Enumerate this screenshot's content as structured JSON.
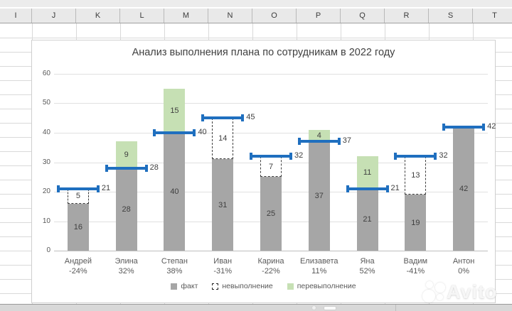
{
  "spreadsheet": {
    "column_headers": [
      "I",
      "J",
      "K",
      "L",
      "M",
      "N",
      "O",
      "P",
      "Q",
      "R",
      "S",
      "T"
    ]
  },
  "chart_data": {
    "type": "bar",
    "title": "Анализ выполнения плана по сотрудникам в 2022 году",
    "categories": [
      "Андрей",
      "Элина",
      "Степан",
      "Иван",
      "Карина",
      "Елизавета",
      "Яна",
      "Вадим",
      "Антон"
    ],
    "category_percents": [
      "-24%",
      "32%",
      "38%",
      "-31%",
      "-22%",
      "11%",
      "52%",
      "-41%",
      "0%"
    ],
    "series": [
      {
        "name": "факт",
        "values": [
          16,
          28,
          40,
          31,
          25,
          37,
          21,
          19,
          42
        ]
      },
      {
        "name": "невыполнение",
        "values": [
          5,
          0,
          0,
          14,
          7,
          0,
          0,
          13,
          0
        ]
      },
      {
        "name": "перевыполнение",
        "values": [
          0,
          9,
          15,
          0,
          0,
          4,
          11,
          0,
          0
        ]
      }
    ],
    "plan_values": [
      21,
      28,
      40,
      45,
      32,
      37,
      21,
      32,
      42
    ],
    "y_ticks": [
      0,
      10,
      20,
      30,
      40,
      50,
      60
    ],
    "ylim": [
      0,
      60
    ],
    "grid": true,
    "legend_position": "bottom",
    "legend": [
      "факт",
      "невыполнение",
      "перевыполнение"
    ],
    "colors": {
      "fact": "#a6a6a6",
      "under": "#ffffff",
      "over": "#c6e0b4",
      "plan": "#1f6fbf"
    }
  },
  "watermark": {
    "text": "Avito"
  }
}
